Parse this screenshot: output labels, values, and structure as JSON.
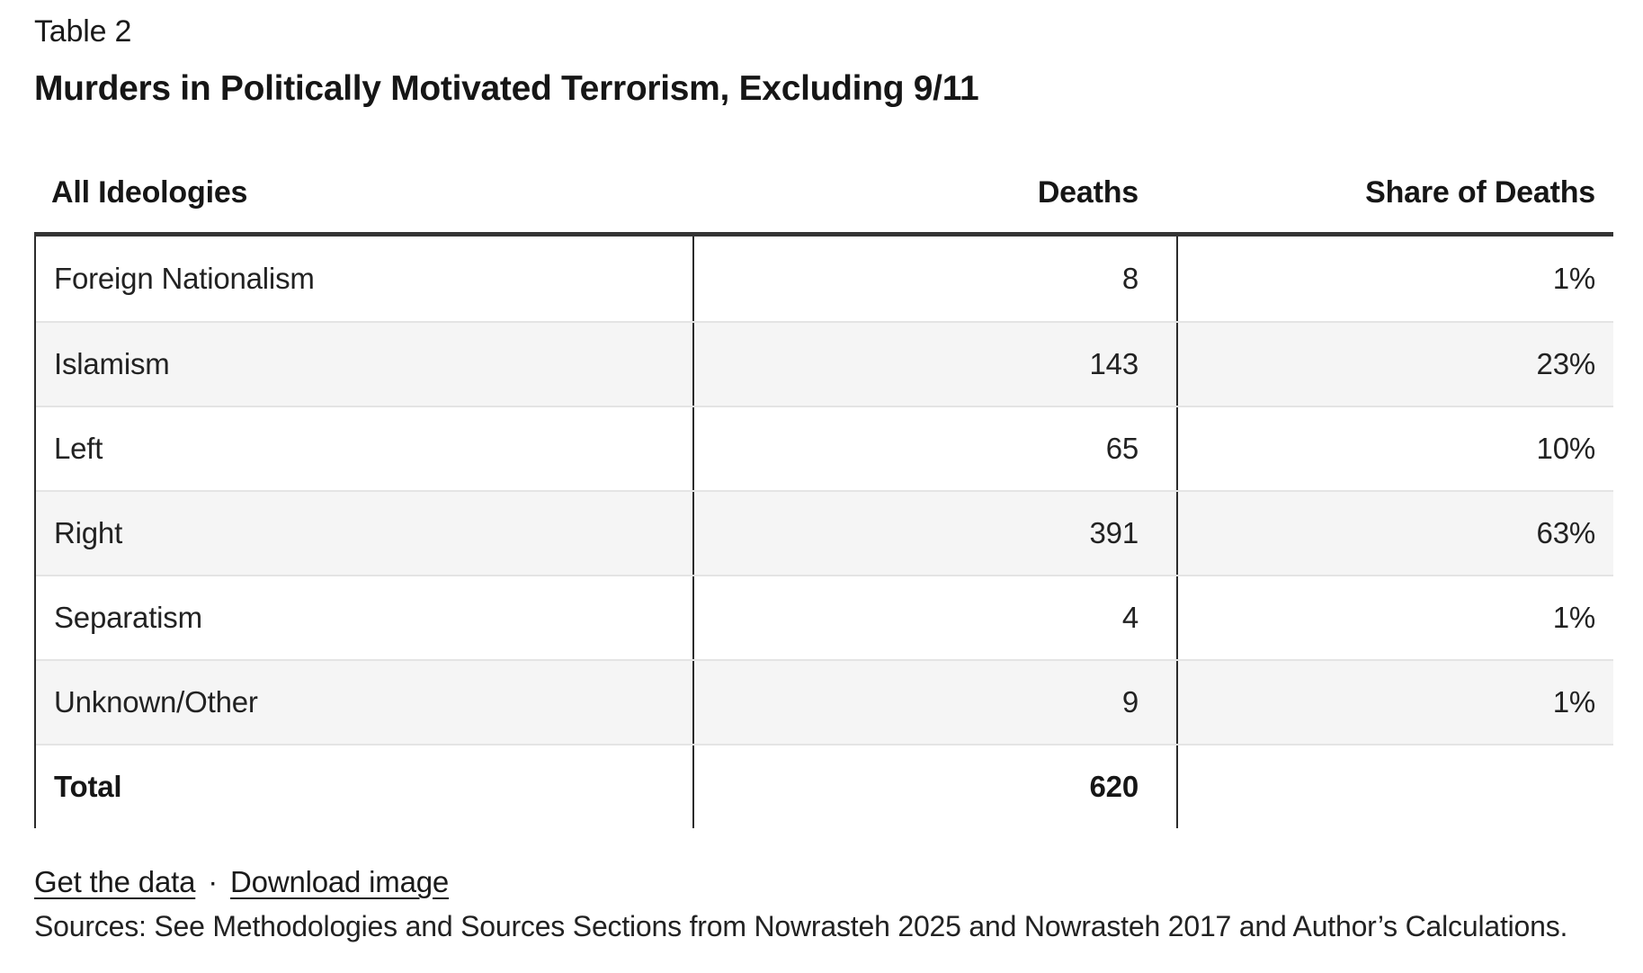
{
  "page": {
    "table_label": "Table 2",
    "title": "Murders in Politically Motivated Terrorism, Excluding 9/11"
  },
  "table": {
    "headers": {
      "ideology": "All Ideologies",
      "deaths": "Deaths",
      "share": "Share of Deaths"
    },
    "rows": [
      {
        "label": "Foreign Nationalism",
        "deaths": "8",
        "share": "1%"
      },
      {
        "label": "Islamism",
        "deaths": "143",
        "share": "23%"
      },
      {
        "label": "Left",
        "deaths": "65",
        "share": "10%"
      },
      {
        "label": "Right",
        "deaths": "391",
        "share": "63%"
      },
      {
        "label": "Separatism",
        "deaths": "4",
        "share": "1%"
      },
      {
        "label": "Unknown/Other",
        "deaths": "9",
        "share": "1%"
      },
      {
        "label": "Total",
        "deaths": "620",
        "share": ""
      }
    ]
  },
  "footer": {
    "get_data_label": "Get the data",
    "separator": "·",
    "download_label": "Download image",
    "sources": "Sources: See Methodologies and Sources Sections from Nowrasteh 2025 and Nowrasteh 2017 and Author’s Calculations."
  },
  "colors": {
    "text": "#1d1d1d",
    "alt_row_background": "#f5f5f5",
    "row_separator": "#e4e4e4",
    "column_divider": "#2b2b2b",
    "header_rule": "#343434"
  },
  "chart_data": {
    "type": "table",
    "title": "Murders in Politically Motivated Terrorism, Excluding 9/11",
    "subtitle_label": "Table 2",
    "columns": [
      "All Ideologies",
      "Deaths",
      "Share of Deaths"
    ],
    "categories": [
      "Foreign Nationalism",
      "Islamism",
      "Left",
      "Right",
      "Separatism",
      "Unknown/Other"
    ],
    "series": [
      {
        "name": "Deaths",
        "values": [
          8,
          143,
          65,
          391,
          4,
          9
        ]
      },
      {
        "name": "Share of Deaths",
        "values": [
          "1%",
          "23%",
          "10%",
          "63%",
          "1%",
          "1%"
        ]
      }
    ],
    "total": {
      "label": "Total",
      "deaths": 620
    },
    "layout": {
      "alternating_rows": true,
      "totals_row": true,
      "grid": "column-dividers"
    }
  }
}
